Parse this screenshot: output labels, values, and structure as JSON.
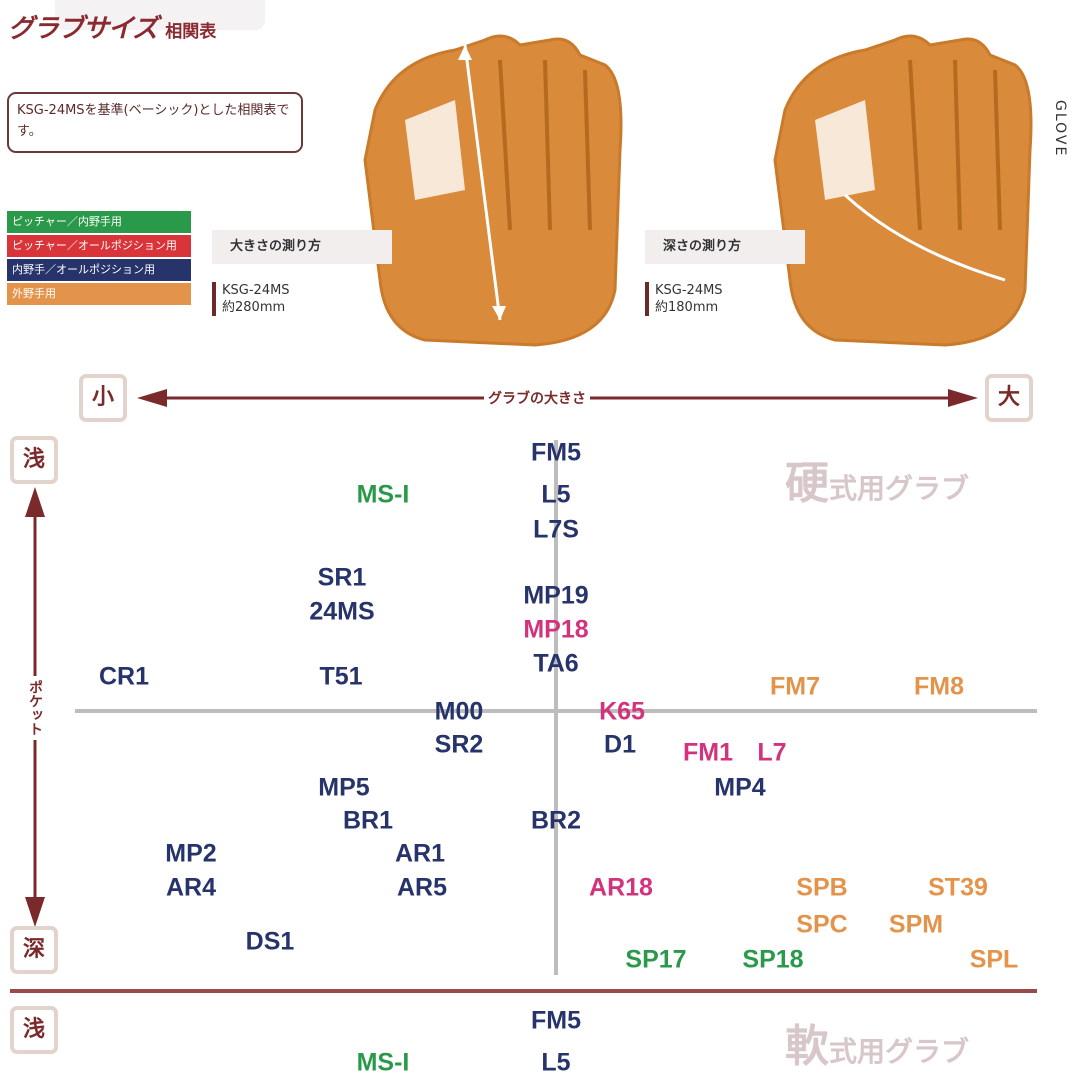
{
  "header": {
    "title": "グラブサイズ",
    "title_suffix": "相関表",
    "note": "KSG-24MSを基準(ベーシック)とした相関表です。"
  },
  "legend": [
    {
      "label": "ピッチャー／内野手用",
      "color": "#2a9a4a"
    },
    {
      "label": "ピッチャー／オールポジション用",
      "color": "#d9343a"
    },
    {
      "label": "内野手／オールポジション用",
      "color": "#27336b"
    },
    {
      "label": "外野手用",
      "color": "#e3944a"
    }
  ],
  "measure_size": {
    "title": "大きさの測り方",
    "model": "KSG-24MS",
    "value": "約280mm"
  },
  "measure_depth": {
    "title": "深さの測り方",
    "model": "KSG-24MS",
    "value": "約180mm"
  },
  "side_text": "GLOVE",
  "axes": {
    "x_label": "グラブの大きさ",
    "x_min": "小",
    "x_max": "大",
    "y_label": "ポケット",
    "y_min": "浅",
    "y_max": "深"
  },
  "colors": {
    "green": "#2a9a4a",
    "pink": "#d2337d",
    "navy": "#27336b",
    "orange": "#e3944a",
    "maroon": "#7a2a2a"
  },
  "hard": {
    "title_big": "硬",
    "title_rest": "式用グラブ",
    "models": [
      {
        "name": "FM5",
        "c": "navy"
      },
      {
        "name": "MS-I",
        "c": "green"
      },
      {
        "name": "L5",
        "c": "navy"
      },
      {
        "name": "L7S",
        "c": "navy"
      },
      {
        "name": "SR1",
        "c": "navy"
      },
      {
        "name": "24MS",
        "c": "navy"
      },
      {
        "name": "MP19",
        "c": "navy"
      },
      {
        "name": "MP18",
        "c": "pink"
      },
      {
        "name": "TA6",
        "c": "navy"
      },
      {
        "name": "CR1",
        "c": "navy"
      },
      {
        "name": "T51",
        "c": "navy"
      },
      {
        "name": "FM7",
        "c": "orange"
      },
      {
        "name": "FM8",
        "c": "orange"
      },
      {
        "name": "M00",
        "c": "navy"
      },
      {
        "name": "K65",
        "c": "pink"
      },
      {
        "name": "SR2",
        "c": "navy"
      },
      {
        "name": "D1",
        "c": "navy"
      },
      {
        "name": "FM1",
        "c": "pink"
      },
      {
        "name": "L7",
        "c": "pink"
      },
      {
        "name": "MP5",
        "c": "navy"
      },
      {
        "name": "MP4",
        "c": "navy"
      },
      {
        "name": "BR1",
        "c": "navy"
      },
      {
        "name": "BR2",
        "c": "navy"
      },
      {
        "name": "MP2",
        "c": "navy"
      },
      {
        "name": "AR1",
        "c": "navy"
      },
      {
        "name": "AR4",
        "c": "navy"
      },
      {
        "name": "AR5",
        "c": "navy"
      },
      {
        "name": "AR18",
        "c": "pink"
      },
      {
        "name": "SPB",
        "c": "orange"
      },
      {
        "name": "ST39",
        "c": "orange"
      },
      {
        "name": "SPC",
        "c": "orange"
      },
      {
        "name": "SPM",
        "c": "orange"
      },
      {
        "name": "DS1",
        "c": "navy"
      },
      {
        "name": "SP17",
        "c": "green"
      },
      {
        "name": "SP18",
        "c": "green"
      },
      {
        "name": "SPL",
        "c": "orange"
      }
    ]
  },
  "soft": {
    "title_big": "軟",
    "title_rest": "式用グラブ",
    "models": [
      {
        "name": "FM5",
        "c": "navy"
      },
      {
        "name": "MS-I",
        "c": "green"
      },
      {
        "name": "L5",
        "c": "navy"
      }
    ]
  }
}
